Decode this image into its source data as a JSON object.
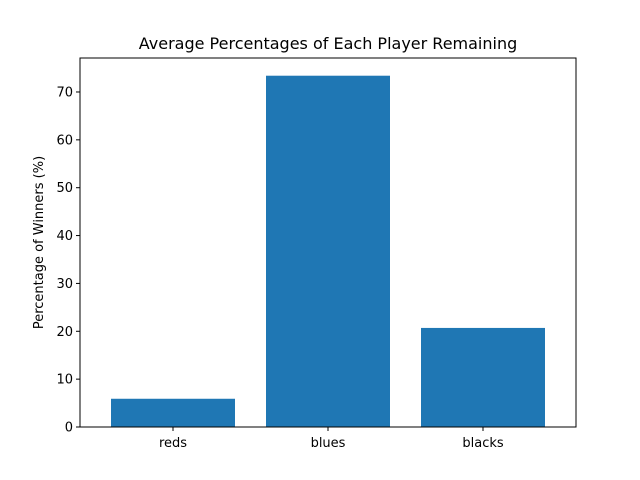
{
  "chart_data": {
    "type": "bar",
    "title": "Average Percentages of Each Player Remaining",
    "xlabel": "",
    "ylabel": "Percentage of Winners (%)",
    "categories": [
      "reds",
      "blues",
      "blacks"
    ],
    "values": [
      5.9,
      73.4,
      20.7
    ],
    "ylim": [
      0,
      77.1
    ],
    "yticks": [
      0,
      10,
      20,
      30,
      40,
      50,
      60,
      70
    ],
    "grid": false,
    "bar_color": "#1f77b4"
  }
}
